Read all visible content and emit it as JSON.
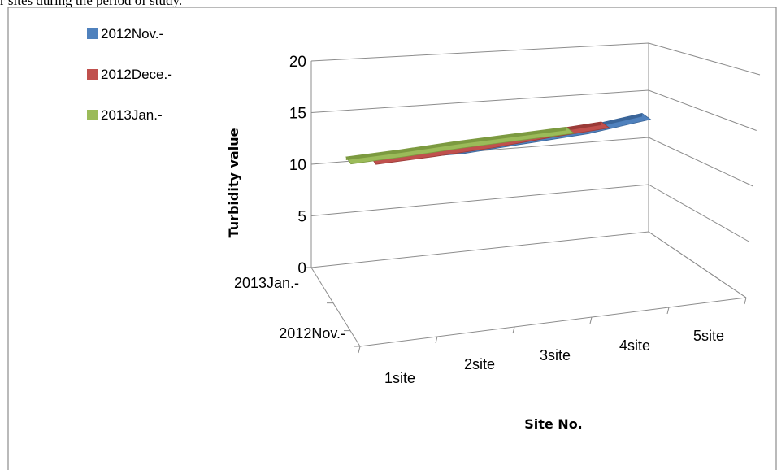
{
  "caption": "r sites during the period of study.",
  "chart_data": {
    "type": "area",
    "categories": [
      "1site",
      "2site",
      "3site",
      "4site",
      "5site"
    ],
    "series": [
      {
        "name": "2012Nov.-",
        "values": [
          12,
          12,
          12.5,
          13,
          14
        ],
        "color": "#4F81BD"
      },
      {
        "name": "2012Dece.-",
        "values": [
          11,
          11.3,
          11.7,
          12.3,
          12.8
        ],
        "color": "#C0504D"
      },
      {
        "name": "2013Jan.-",
        "values": [
          10.6,
          10.9,
          11.3,
          11.6,
          11.9
        ],
        "color": "#9BBB59"
      }
    ],
    "depth_labels": [
      "2013Jan.-",
      "2012Nov.-"
    ],
    "ylabel": "Turbidity value",
    "xlabel": "Site No.",
    "ylim": [
      0,
      20
    ],
    "yticks": [
      0,
      5,
      10,
      15,
      20
    ],
    "legend_position": "top-left",
    "grid": true
  }
}
